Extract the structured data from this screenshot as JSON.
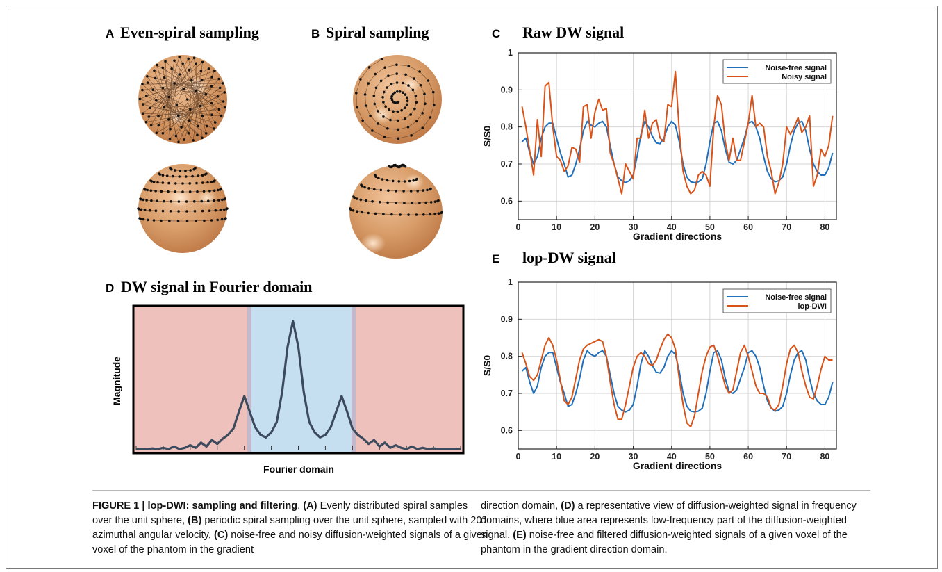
{
  "panels": {
    "A": {
      "letter": "A",
      "title": "Even-spiral sampling"
    },
    "B": {
      "letter": "B",
      "title": "Spiral sampling"
    },
    "C": {
      "letter": "C",
      "title": "Raw DW signal"
    },
    "D": {
      "letter": "D",
      "title": "DW signal in Fourier domain",
      "xlabel": "Fourier domain",
      "ylabel": "Magnitude"
    },
    "E": {
      "letter": "E",
      "title": "lop-DW signal"
    }
  },
  "chart_data": [
    {
      "panel": "C",
      "type": "line",
      "xlabel": "Gradient directions",
      "ylabel": "S/S0",
      "xlim": [
        0,
        83
      ],
      "ylim": [
        0.55,
        1.0
      ],
      "xticks": [
        0,
        10,
        20,
        30,
        40,
        50,
        60,
        70,
        80
      ],
      "yticks": [
        0.6,
        0.7,
        0.8,
        0.9,
        1
      ],
      "ytick_labels": [
        "0.6",
        "0.7",
        "0.8",
        "0.9",
        "1"
      ],
      "grid": true,
      "legend_position": "top-right",
      "series": [
        {
          "name": "Noise-free signal",
          "color": "#1f6fba",
          "x": [
            1,
            2,
            3,
            4,
            5,
            6,
            7,
            8,
            9,
            10,
            11,
            12,
            13,
            14,
            15,
            16,
            17,
            18,
            19,
            20,
            21,
            22,
            23,
            24,
            25,
            26,
            27,
            28,
            29,
            30,
            31,
            32,
            33,
            34,
            35,
            36,
            37,
            38,
            39,
            40,
            41,
            42,
            43,
            44,
            45,
            46,
            47,
            48,
            49,
            50,
            51,
            52,
            53,
            54,
            55,
            56,
            57,
            58,
            59,
            60,
            61,
            62,
            63,
            64,
            65,
            66,
            67,
            68,
            69,
            70,
            71,
            72,
            73,
            74,
            75,
            76,
            77,
            78,
            79,
            80,
            81,
            82
          ],
          "y": [
            0.76,
            0.77,
            0.73,
            0.7,
            0.72,
            0.77,
            0.8,
            0.81,
            0.81,
            0.77,
            0.73,
            0.7,
            0.665,
            0.67,
            0.7,
            0.74,
            0.79,
            0.815,
            0.805,
            0.8,
            0.81,
            0.815,
            0.8,
            0.75,
            0.7,
            0.665,
            0.655,
            0.65,
            0.655,
            0.67,
            0.72,
            0.78,
            0.815,
            0.8,
            0.775,
            0.757,
            0.755,
            0.77,
            0.8,
            0.815,
            0.805,
            0.76,
            0.7,
            0.665,
            0.652,
            0.65,
            0.652,
            0.66,
            0.7,
            0.76,
            0.81,
            0.815,
            0.79,
            0.74,
            0.705,
            0.7,
            0.71,
            0.74,
            0.77,
            0.81,
            0.815,
            0.8,
            0.77,
            0.72,
            0.68,
            0.66,
            0.652,
            0.655,
            0.665,
            0.7,
            0.75,
            0.79,
            0.81,
            0.815,
            0.79,
            0.74,
            0.7,
            0.68,
            0.67,
            0.67,
            0.69,
            0.73
          ]
        },
        {
          "name": "Noisy signal",
          "color": "#d95319",
          "x": [
            1,
            2,
            3,
            4,
            5,
            6,
            7,
            8,
            9,
            10,
            11,
            12,
            13,
            14,
            15,
            16,
            17,
            18,
            19,
            20,
            21,
            22,
            23,
            24,
            25,
            26,
            27,
            28,
            29,
            30,
            31,
            32,
            33,
            34,
            35,
            36,
            37,
            38,
            39,
            40,
            41,
            42,
            43,
            44,
            45,
            46,
            47,
            48,
            49,
            50,
            51,
            52,
            53,
            54,
            55,
            56,
            57,
            58,
            59,
            60,
            61,
            62,
            63,
            64,
            65,
            66,
            67,
            68,
            69,
            70,
            71,
            72,
            73,
            74,
            75,
            76,
            77,
            78,
            79,
            80,
            81,
            82
          ],
          "y": [
            0.855,
            0.8,
            0.735,
            0.67,
            0.82,
            0.72,
            0.91,
            0.92,
            0.8,
            0.72,
            0.71,
            0.68,
            0.695,
            0.745,
            0.74,
            0.705,
            0.855,
            0.86,
            0.77,
            0.84,
            0.875,
            0.845,
            0.85,
            0.73,
            0.7,
            0.66,
            0.62,
            0.7,
            0.68,
            0.66,
            0.77,
            0.77,
            0.845,
            0.77,
            0.81,
            0.82,
            0.77,
            0.76,
            0.86,
            0.855,
            0.95,
            0.79,
            0.68,
            0.64,
            0.62,
            0.63,
            0.67,
            0.68,
            0.67,
            0.64,
            0.8,
            0.885,
            0.86,
            0.76,
            0.71,
            0.77,
            0.71,
            0.71,
            0.76,
            0.81,
            0.885,
            0.8,
            0.81,
            0.8,
            0.72,
            0.68,
            0.62,
            0.65,
            0.7,
            0.8,
            0.78,
            0.8,
            0.825,
            0.785,
            0.8,
            0.83,
            0.64,
            0.67,
            0.74,
            0.72,
            0.75,
            0.83
          ]
        }
      ]
    },
    {
      "panel": "E",
      "type": "line",
      "xlabel": "Gradient directions",
      "ylabel": "S/S0",
      "xlim": [
        0,
        83
      ],
      "ylim": [
        0.55,
        1.0
      ],
      "xticks": [
        0,
        10,
        20,
        30,
        40,
        50,
        60,
        70,
        80
      ],
      "yticks": [
        0.6,
        0.7,
        0.8,
        0.9,
        1
      ],
      "ytick_labels": [
        "0.6",
        "0.7",
        "0.8",
        "0.9",
        "1"
      ],
      "grid": true,
      "legend_position": "top-right",
      "series": [
        {
          "name": "Noise-free signal",
          "color": "#1f6fba",
          "x": [
            1,
            2,
            3,
            4,
            5,
            6,
            7,
            8,
            9,
            10,
            11,
            12,
            13,
            14,
            15,
            16,
            17,
            18,
            19,
            20,
            21,
            22,
            23,
            24,
            25,
            26,
            27,
            28,
            29,
            30,
            31,
            32,
            33,
            34,
            35,
            36,
            37,
            38,
            39,
            40,
            41,
            42,
            43,
            44,
            45,
            46,
            47,
            48,
            49,
            50,
            51,
            52,
            53,
            54,
            55,
            56,
            57,
            58,
            59,
            60,
            61,
            62,
            63,
            64,
            65,
            66,
            67,
            68,
            69,
            70,
            71,
            72,
            73,
            74,
            75,
            76,
            77,
            78,
            79,
            80,
            81,
            82
          ],
          "y": [
            0.76,
            0.77,
            0.73,
            0.7,
            0.72,
            0.77,
            0.8,
            0.81,
            0.81,
            0.77,
            0.73,
            0.7,
            0.665,
            0.67,
            0.7,
            0.74,
            0.79,
            0.815,
            0.805,
            0.8,
            0.81,
            0.815,
            0.8,
            0.75,
            0.7,
            0.665,
            0.655,
            0.65,
            0.655,
            0.67,
            0.72,
            0.78,
            0.815,
            0.8,
            0.775,
            0.757,
            0.755,
            0.77,
            0.8,
            0.815,
            0.805,
            0.76,
            0.7,
            0.665,
            0.652,
            0.65,
            0.652,
            0.66,
            0.7,
            0.76,
            0.81,
            0.815,
            0.79,
            0.74,
            0.705,
            0.7,
            0.71,
            0.74,
            0.77,
            0.81,
            0.815,
            0.8,
            0.77,
            0.72,
            0.68,
            0.66,
            0.652,
            0.655,
            0.665,
            0.7,
            0.75,
            0.79,
            0.81,
            0.815,
            0.79,
            0.74,
            0.7,
            0.68,
            0.67,
            0.67,
            0.69,
            0.73
          ]
        },
        {
          "name": "lop-DWI",
          "color": "#d95319",
          "x": [
            1,
            2,
            3,
            4,
            5,
            6,
            7,
            8,
            9,
            10,
            11,
            12,
            13,
            14,
            15,
            16,
            17,
            18,
            19,
            20,
            21,
            22,
            23,
            24,
            25,
            26,
            27,
            28,
            29,
            30,
            31,
            32,
            33,
            34,
            35,
            36,
            37,
            38,
            39,
            40,
            41,
            42,
            43,
            44,
            45,
            46,
            47,
            48,
            49,
            50,
            51,
            52,
            53,
            54,
            55,
            56,
            57,
            58,
            59,
            60,
            61,
            62,
            63,
            64,
            65,
            66,
            67,
            68,
            69,
            70,
            71,
            72,
            73,
            74,
            75,
            76,
            77,
            78,
            79,
            80,
            81,
            82
          ],
          "y": [
            0.81,
            0.78,
            0.745,
            0.735,
            0.75,
            0.79,
            0.83,
            0.85,
            0.83,
            0.79,
            0.735,
            0.68,
            0.67,
            0.69,
            0.74,
            0.79,
            0.82,
            0.83,
            0.835,
            0.84,
            0.845,
            0.84,
            0.8,
            0.73,
            0.67,
            0.63,
            0.63,
            0.67,
            0.72,
            0.77,
            0.8,
            0.81,
            0.8,
            0.78,
            0.775,
            0.79,
            0.82,
            0.845,
            0.86,
            0.85,
            0.82,
            0.74,
            0.67,
            0.62,
            0.61,
            0.64,
            0.7,
            0.76,
            0.8,
            0.825,
            0.83,
            0.8,
            0.76,
            0.72,
            0.7,
            0.71,
            0.76,
            0.81,
            0.83,
            0.8,
            0.76,
            0.72,
            0.7,
            0.7,
            0.69,
            0.66,
            0.655,
            0.67,
            0.72,
            0.78,
            0.82,
            0.83,
            0.81,
            0.76,
            0.72,
            0.69,
            0.685,
            0.72,
            0.765,
            0.8,
            0.79,
            0.79
          ]
        }
      ]
    },
    {
      "panel": "D",
      "type": "line",
      "xlabel": "Fourier domain",
      "ylabel": "Magnitude",
      "regions": {
        "low_frequency_color": "#c5dff1",
        "high_frequency_color": "#efc1bd"
      },
      "series": [
        {
          "name": "",
          "color": "#3b4a5c",
          "x": [
            0,
            1,
            2,
            3,
            4,
            5,
            6,
            7,
            8,
            9,
            10,
            11,
            12,
            13,
            14,
            15,
            16,
            17,
            18,
            19,
            20,
            21,
            22,
            23,
            24,
            25,
            26,
            27,
            28,
            29,
            30,
            31,
            32,
            33,
            34,
            35,
            36,
            37,
            38,
            39,
            40,
            41,
            42,
            43,
            44,
            45,
            46,
            47,
            48,
            49,
            50,
            51,
            52,
            53,
            54,
            55,
            56,
            57,
            58,
            59,
            60
          ],
          "y": [
            0.01,
            0.01,
            0.01,
            0.015,
            0.01,
            0.02,
            0.01,
            0.03,
            0.01,
            0.02,
            0.04,
            0.02,
            0.06,
            0.03,
            0.08,
            0.05,
            0.09,
            0.12,
            0.17,
            0.3,
            0.42,
            0.3,
            0.18,
            0.12,
            0.1,
            0.14,
            0.22,
            0.45,
            0.8,
            1.0,
            0.8,
            0.45,
            0.22,
            0.14,
            0.1,
            0.12,
            0.18,
            0.3,
            0.42,
            0.3,
            0.17,
            0.12,
            0.09,
            0.05,
            0.08,
            0.03,
            0.06,
            0.02,
            0.04,
            0.02,
            0.01,
            0.03,
            0.01,
            0.02,
            0.01,
            0.015,
            0.01,
            0.01,
            0.01,
            0.01,
            0.01
          ]
        }
      ]
    }
  ],
  "caption": {
    "label": "FIGURE 1 | lop-DWI: sampling and filtering",
    "period": ".",
    "left_parts": [
      {
        "t": " "
      },
      {
        "b": "(A)"
      },
      {
        "t": " Evenly distributed spiral samples over the unit sphere, "
      },
      {
        "b": "(B)"
      },
      {
        "t": " periodic spiral sampling over the unit sphere, sampled with 20° azimuthal angular velocity, "
      },
      {
        "b": "(C)"
      },
      {
        "t": " noise-free and noisy diffusion-weighted signals of a given voxel of the phantom in the gradient"
      }
    ],
    "right_parts": [
      {
        "t": "direction domain, "
      },
      {
        "b": "(D)"
      },
      {
        "t": " a representative view of diffusion-weighted signal in frequency domains, where blue area represents low-frequency part of the diffusion-weighted signal, "
      },
      {
        "b": "(E)"
      },
      {
        "t": " noise-free and filtered diffusion-weighted signals of a given voxel of the phantom in the gradient direction domain."
      }
    ]
  }
}
